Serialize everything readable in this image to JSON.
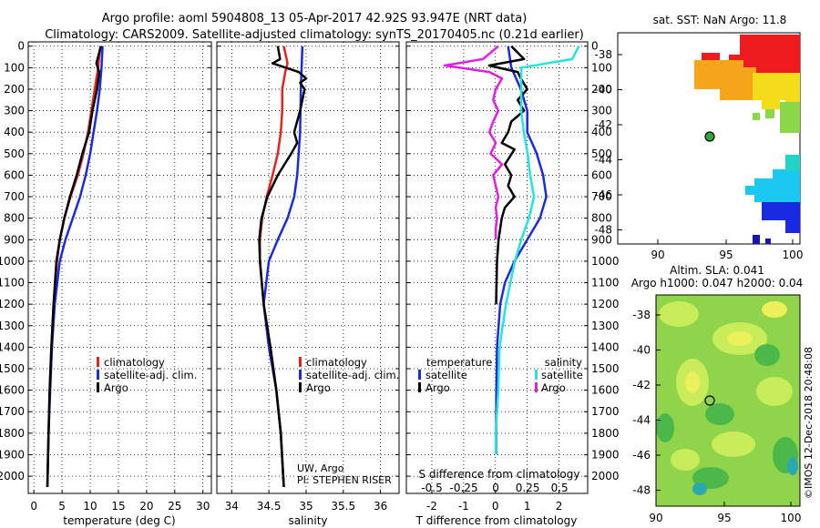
{
  "title_line1": "Argo profile: aoml 5904808_13 05-Apr-2017 42.92S 93.947E (NRT data)",
  "title_line2": "Climatology: CARS2009. Satellite-adjusted climatology: synTS_20170405.nc (0.21d earlier)",
  "colors": {
    "climatology": "#e8231a",
    "satellite": "#1a2ae0",
    "argo": "#000000",
    "sal_sat": "#22e4e4",
    "sal_argo": "#e020e0"
  },
  "depth_ticks": [
    0,
    100,
    200,
    300,
    400,
    500,
    600,
    700,
    800,
    900,
    1000,
    1100,
    1200,
    1300,
    1400,
    1500,
    1600,
    1700,
    1800,
    1900,
    2000
  ],
  "legend_main": {
    "climatology": "climatology",
    "satellite": "satellite-adj. clim.",
    "argo": "Argo"
  },
  "legend_diff": {
    "temp_head": "temperature",
    "sal_head": "salinity",
    "satellite": "satellite",
    "argo": "Argo"
  },
  "credit": {
    "line1": "UW, Argo",
    "line2": "PI: STEPHEN RISER"
  },
  "sst_title": "sat. SST: NaN Argo: 11.8",
  "sla_title1": "Altim. SLA: 0.041",
  "sla_title2": "Argo h1000: 0.047 h2000: 0.04",
  "imos_stamp": "©IMOS 12-Dec-2018 20:48:08",
  "map": {
    "lat_ticks": [
      "-38",
      "-40",
      "-42",
      "-44",
      "-46",
      "-48"
    ],
    "lon_ticks": [
      "90",
      "95",
      "100"
    ]
  },
  "chart_data": [
    {
      "type": "line",
      "name": "temperature",
      "xlabel": "temperature (deg C)",
      "xlim": [
        -1,
        31.5
      ],
      "xticks": [
        0,
        5,
        10,
        15,
        20,
        25,
        30
      ],
      "ylim": [
        2080,
        -20
      ],
      "series": [
        {
          "name": "climatology",
          "depth": [
            0,
            100,
            200,
            300,
            400,
            500,
            600,
            700,
            800,
            900,
            1000,
            1200,
            1400,
            1600,
            1800,
            2050
          ],
          "values": [
            11.8,
            11.4,
            10.8,
            10.2,
            9.6,
            8.8,
            7.8,
            6.5,
            5.4,
            4.6,
            4.1,
            3.5,
            3.1,
            2.8,
            2.6,
            2.4
          ]
        },
        {
          "name": "satellite-adj. clim.",
          "depth": [
            0,
            100,
            200,
            300,
            400,
            500,
            600,
            700,
            800,
            900,
            1000,
            1200,
            1400,
            1600,
            1800,
            2050
          ],
          "values": [
            12.2,
            12.0,
            11.7,
            11.2,
            10.6,
            10.0,
            9.2,
            8.2,
            6.9,
            5.6,
            4.6,
            3.7,
            3.2,
            2.9,
            2.6,
            2.4
          ]
        },
        {
          "name": "Argo",
          "depth": [
            0,
            80,
            120,
            200,
            300,
            400,
            500,
            600,
            700,
            800,
            900,
            1000,
            1200,
            1400,
            1600,
            1800,
            2050
          ],
          "values": [
            11.9,
            11.1,
            11.6,
            11.2,
            10.4,
            9.8,
            8.6,
            7.6,
            6.4,
            5.4,
            4.6,
            4.0,
            3.5,
            3.1,
            2.8,
            2.6,
            2.4
          ]
        }
      ]
    },
    {
      "type": "line",
      "name": "salinity",
      "xlabel": "salinity",
      "xlim": [
        33.8,
        36.25
      ],
      "xticks": [
        34,
        34.5,
        35,
        35.5,
        36
      ],
      "xticklabels": [
        "34",
        "34.5",
        "35",
        "35.5",
        "36"
      ],
      "ylim": [
        2080,
        -20
      ],
      "series": [
        {
          "name": "climatology",
          "depth": [
            0,
            80,
            120,
            200,
            300,
            400,
            500,
            600,
            700,
            800,
            900,
            1000,
            1200,
            1400,
            1600,
            1800,
            2050
          ],
          "values": [
            34.7,
            34.75,
            34.72,
            34.68,
            34.68,
            34.66,
            34.62,
            34.55,
            34.47,
            34.41,
            34.38,
            34.38,
            34.43,
            34.52,
            34.6,
            34.66,
            34.7
          ]
        },
        {
          "name": "satellite-adj. clim.",
          "depth": [
            0,
            200,
            400,
            600,
            700,
            800,
            900,
            1000,
            1200,
            1400,
            1600,
            1800,
            2050
          ],
          "values": [
            34.95,
            34.93,
            34.92,
            34.88,
            34.84,
            34.75,
            34.62,
            34.5,
            34.43,
            34.5,
            34.6,
            34.66,
            34.7
          ]
        },
        {
          "name": "Argo",
          "depth": [
            0,
            60,
            80,
            120,
            150,
            170,
            200,
            300,
            400,
            450,
            500,
            600,
            700,
            800,
            900,
            1000,
            1200,
            1400,
            1600,
            1800,
            2050
          ],
          "values": [
            34.62,
            34.65,
            34.55,
            34.9,
            35.0,
            34.92,
            34.98,
            34.92,
            34.84,
            34.88,
            34.8,
            34.62,
            34.48,
            34.4,
            34.37,
            34.38,
            34.43,
            34.52,
            34.6,
            34.66,
            34.7
          ]
        }
      ]
    },
    {
      "type": "line",
      "name": "difference",
      "xlabel": "T difference from climatology",
      "xlabel2": "S difference from climatology",
      "xlim": [
        -2.8,
        2.9
      ],
      "xticks": [
        -2,
        -1,
        0,
        1,
        2
      ],
      "xticks2_values": [
        -0.5,
        -0.25,
        0,
        0.25,
        0.5
      ],
      "xticks2_labels": [
        "-0.5",
        "-0.25",
        "0",
        "0.25",
        "0.5"
      ],
      "ylim": [
        2080,
        -20
      ],
      "series": [
        {
          "name": "temperature satellite",
          "depth": [
            0,
            100,
            200,
            300,
            400,
            500,
            600,
            700,
            800,
            900,
            1000,
            1100,
            1200,
            1400,
            1600,
            1800,
            1900
          ],
          "values": [
            0.4,
            0.5,
            0.8,
            1.0,
            1.0,
            1.3,
            1.5,
            1.6,
            1.4,
            1.0,
            0.6,
            0.3,
            0.15,
            0.05,
            0.03,
            0.02,
            0.02
          ]
        },
        {
          "name": "temperature Argo",
          "depth": [
            0,
            60,
            90,
            120,
            150,
            200,
            250,
            300,
            350,
            400,
            450,
            480,
            550,
            600,
            650,
            700,
            750,
            800,
            900,
            1000,
            1200
          ],
          "values": [
            0.5,
            0.9,
            -0.2,
            0.7,
            0.8,
            1.0,
            0.7,
            0.9,
            0.5,
            0.4,
            0.2,
            0.6,
            0.3,
            0.5,
            0.4,
            0.6,
            0.3,
            0.2,
            0.1,
            0.05,
            0.02
          ]
        },
        {
          "name": "salinity satellite",
          "depth": [
            0,
            60,
            100,
            200,
            300,
            400,
            500,
            600,
            700,
            800,
            900,
            1000,
            1200,
            1400,
            1600,
            1800,
            1900
          ],
          "values": [
            0.65,
            0.6,
            0.2,
            0.2,
            0.2,
            0.22,
            0.25,
            0.27,
            0.3,
            0.26,
            0.2,
            0.15,
            0.08,
            0.03,
            0.02,
            0.0,
            0.0
          ]
        },
        {
          "name": "salinity Argo",
          "depth": [
            0,
            60,
            90,
            120,
            150,
            200,
            250,
            300,
            350,
            400,
            450,
            500,
            550,
            600,
            650,
            700,
            750,
            800,
            850,
            900
          ],
          "values": [
            0.02,
            -0.1,
            -0.4,
            -0.05,
            0.05,
            0.0,
            -0.02,
            0.02,
            -0.02,
            -0.05,
            0.0,
            -0.04,
            0.05,
            -0.02,
            0.0,
            0.02,
            0.0,
            0.01,
            0.0,
            0.0
          ]
        }
      ]
    }
  ]
}
